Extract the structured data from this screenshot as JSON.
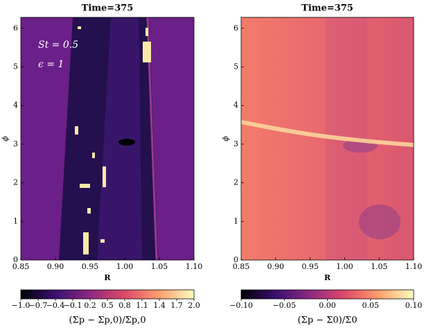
{
  "chart_data": [
    {
      "type": "heatmap",
      "title": "Time=375",
      "xlabel": "R",
      "ylabel": "ϕ",
      "xlim": [
        0.85,
        1.1
      ],
      "ylim": [
        0,
        6.283
      ],
      "xticks": [
        0.85,
        {
          "value": 0.9,
          "label": "0.90"
        },
        0.95,
        {
          "value": 1.0,
          "label": "1.00"
        },
        1.05,
        {
          "value": 1.1,
          "label": "1.10"
        }
      ],
      "yticks": [
        0,
        1,
        2,
        3,
        4,
        5,
        6
      ],
      "annotations": [
        "St = 0.5",
        "ϵ = 1"
      ],
      "colorbar": {
        "label": "(Σp − Σp,0)/Σp,0",
        "lim": [
          -1.0,
          2.0
        ],
        "ticks": [
          {
            "value": -1.0,
            "label": "−1.0"
          },
          {
            "value": -0.7,
            "label": "−0.7"
          },
          {
            "value": -0.4,
            "label": "−0.4"
          },
          {
            "value": -0.1,
            "label": "−0.1"
          },
          0.2,
          0.5,
          0.8,
          1.1,
          1.4,
          1.7,
          {
            "value": 2.0,
            "label": "2.0"
          }
        ]
      }
    },
    {
      "type": "heatmap",
      "title": "Time=375",
      "xlabel": "R",
      "ylabel": "ϕ",
      "xlim": [
        0.85,
        1.1
      ],
      "ylim": [
        0,
        6.283
      ],
      "xticks": [
        0.85,
        {
          "value": 0.9,
          "label": "0.90"
        },
        0.95,
        {
          "value": 1.0,
          "label": "1.00"
        },
        1.05,
        {
          "value": 1.1,
          "label": "1.10"
        }
      ],
      "yticks": [
        0,
        1,
        2,
        3,
        4,
        5,
        6
      ],
      "colorbar": {
        "label": "(Σp − Σ0)/Σ0",
        "lim": [
          -0.1,
          0.1
        ],
        "ticks": [
          {
            "value": -0.1,
            "label": "−0.10"
          },
          {
            "value": -0.05,
            "label": "−0.05"
          },
          {
            "value": 0.0,
            "label": "0.00"
          },
          {
            "value": 0.05,
            "label": "0.05"
          },
          {
            "value": 0.1,
            "label": "0.10"
          }
        ]
      }
    }
  ]
}
